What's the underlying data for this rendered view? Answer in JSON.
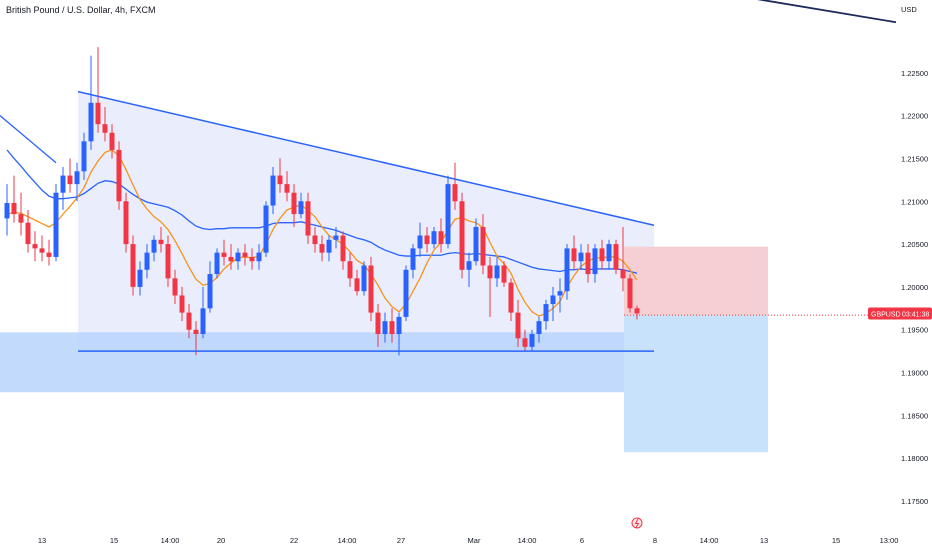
{
  "header": {
    "title": "British Pound / U.S. Dollar, 4h, FXCM",
    "currency": "USD"
  },
  "price_tag": {
    "symbol": "GBPUSD",
    "countdown": "03:41:38",
    "price": 1.1969,
    "color": "#f23645"
  },
  "colors": {
    "up": "#2962ff",
    "down": "#f23645",
    "ma_blue": "#2962ff",
    "ma_orange": "#f7931a",
    "triangle_fill": "#e3e9fb",
    "support_zone": "#b7d3fb",
    "stop_zone": "#f6cfd3",
    "target_zone": "#c9e2fb"
  },
  "chart_data": {
    "type": "candlestick",
    "title": "British Pound / U.S. Dollar, 4h, FXCM",
    "ylabel": "USD",
    "ylim": [
      1.1715,
      1.2335
    ],
    "y_ticks": [
      "1.22500",
      "1.22000",
      "1.21500",
      "1.21000",
      "1.20500",
      "1.20000",
      "1.19500",
      "1.19000",
      "1.18500",
      "1.18000",
      "1.17500"
    ],
    "x_ticks": [
      "13",
      "15",
      "14:00",
      "20",
      "22",
      "14:00",
      "27",
      "Mar",
      "14:00",
      "6",
      "8",
      "14:00",
      "13",
      "15",
      "13:00"
    ],
    "series": [
      {
        "name": "candles",
        "ohlc": [
          [
            1.208,
            1.212,
            1.206,
            1.2098
          ],
          [
            1.2098,
            1.213,
            1.2075,
            1.2085
          ],
          [
            1.2085,
            1.211,
            1.206,
            1.2075
          ],
          [
            1.2075,
            1.209,
            1.204,
            1.205
          ],
          [
            1.205,
            1.2065,
            1.203,
            1.2045
          ],
          [
            1.2045,
            1.206,
            1.203,
            1.204
          ],
          [
            1.204,
            1.2055,
            1.2025,
            1.2035
          ],
          [
            1.2035,
            1.212,
            1.203,
            1.211
          ],
          [
            1.211,
            1.214,
            1.209,
            1.213
          ],
          [
            1.213,
            1.215,
            1.211,
            1.212
          ],
          [
            1.212,
            1.2145,
            1.21,
            1.2135
          ],
          [
            1.2135,
            1.218,
            1.2125,
            1.217
          ],
          [
            1.217,
            1.227,
            1.216,
            1.2215
          ],
          [
            1.2215,
            1.228,
            1.218,
            1.219
          ],
          [
            1.219,
            1.221,
            1.217,
            1.218
          ],
          [
            1.218,
            1.219,
            1.215,
            1.216
          ],
          [
            1.216,
            1.217,
            1.209,
            1.21
          ],
          [
            1.21,
            1.211,
            1.204,
            1.205
          ],
          [
            1.205,
            1.206,
            1.199,
            1.2
          ],
          [
            1.2,
            1.203,
            1.199,
            1.202
          ],
          [
            1.202,
            1.205,
            1.201,
            1.204
          ],
          [
            1.204,
            1.206,
            1.203,
            1.2055
          ],
          [
            1.2055,
            1.207,
            1.204,
            1.205
          ],
          [
            1.205,
            1.206,
            1.2,
            1.201
          ],
          [
            1.201,
            1.202,
            1.198,
            1.199
          ],
          [
            1.199,
            1.2,
            1.196,
            1.197
          ],
          [
            1.197,
            1.198,
            1.194,
            1.195
          ],
          [
            1.195,
            1.196,
            1.192,
            1.1945
          ],
          [
            1.1945,
            1.2,
            1.194,
            1.1975
          ],
          [
            1.1975,
            1.203,
            1.197,
            1.2015
          ],
          [
            1.2015,
            1.2045,
            1.201,
            1.204
          ],
          [
            1.204,
            1.2055,
            1.2025,
            1.2035
          ],
          [
            1.2035,
            1.205,
            1.202,
            1.203
          ],
          [
            1.203,
            1.2045,
            1.202,
            1.204
          ],
          [
            1.204,
            1.205,
            1.2025,
            1.2035
          ],
          [
            1.2035,
            1.2045,
            1.202,
            1.203
          ],
          [
            1.203,
            1.205,
            1.202,
            1.204
          ],
          [
            1.204,
            1.21,
            1.2035,
            1.2095
          ],
          [
            1.2095,
            1.214,
            1.2085,
            1.213
          ],
          [
            1.213,
            1.215,
            1.211,
            1.212
          ],
          [
            1.212,
            1.2135,
            1.21,
            1.211
          ],
          [
            1.211,
            1.212,
            1.207,
            1.2085
          ],
          [
            1.2085,
            1.211,
            1.208,
            1.21
          ],
          [
            1.21,
            1.211,
            1.205,
            1.206
          ],
          [
            1.206,
            1.207,
            1.204,
            1.205
          ],
          [
            1.205,
            1.206,
            1.203,
            1.204
          ],
          [
            1.204,
            1.206,
            1.203,
            1.2055
          ],
          [
            1.2055,
            1.207,
            1.2045,
            1.206
          ],
          [
            1.206,
            1.2065,
            1.202,
            1.203
          ],
          [
            1.203,
            1.204,
            1.2,
            1.201
          ],
          [
            1.201,
            1.202,
            1.199,
            1.1995
          ],
          [
            1.1995,
            1.203,
            1.199,
            1.2025
          ],
          [
            1.2025,
            1.2035,
            1.196,
            1.197
          ],
          [
            1.197,
            1.198,
            1.193,
            1.1945
          ],
          [
            1.1945,
            1.197,
            1.1935,
            1.196
          ],
          [
            1.196,
            1.1975,
            1.1935,
            1.1945
          ],
          [
            1.1945,
            1.197,
            1.192,
            1.1965
          ],
          [
            1.1965,
            1.2025,
            1.196,
            1.202
          ],
          [
            1.202,
            1.205,
            1.201,
            1.2045
          ],
          [
            1.2045,
            1.2075,
            1.2035,
            1.206
          ],
          [
            1.206,
            1.207,
            1.204,
            1.205
          ],
          [
            1.205,
            1.207,
            1.2045,
            1.2065
          ],
          [
            1.2065,
            1.208,
            1.204,
            1.205
          ],
          [
            1.205,
            1.213,
            1.2045,
            1.212
          ],
          [
            1.212,
            1.2145,
            1.209,
            1.21
          ],
          [
            1.21,
            1.211,
            1.201,
            1.202
          ],
          [
            1.202,
            1.204,
            1.2,
            1.203
          ],
          [
            1.203,
            1.208,
            1.2025,
            1.207
          ],
          [
            1.207,
            1.2085,
            1.2015,
            1.2025
          ],
          [
            1.2025,
            1.2035,
            1.1965,
            1.201
          ],
          [
            1.201,
            1.2035,
            1.2,
            1.2025
          ],
          [
            1.2025,
            1.203,
            1.2,
            1.2005
          ],
          [
            1.2005,
            1.201,
            1.196,
            1.197
          ],
          [
            1.197,
            1.1985,
            1.193,
            1.194
          ],
          [
            1.194,
            1.195,
            1.1925,
            1.193
          ],
          [
            1.193,
            1.195,
            1.1925,
            1.1945
          ],
          [
            1.1945,
            1.1965,
            1.1935,
            1.196
          ],
          [
            1.196,
            1.1985,
            1.195,
            1.198
          ],
          [
            1.198,
            1.2,
            1.196,
            1.199
          ],
          [
            1.199,
            1.201,
            1.197,
            1.1995
          ],
          [
            1.1995,
            1.205,
            1.1985,
            1.2045
          ],
          [
            1.2045,
            1.206,
            1.202,
            1.203
          ],
          [
            1.203,
            1.205,
            1.202,
            1.204
          ],
          [
            1.204,
            1.205,
            1.2005,
            1.2015
          ],
          [
            1.2015,
            1.205,
            1.2005,
            1.2045
          ],
          [
            1.2045,
            1.2055,
            1.202,
            1.203
          ],
          [
            1.203,
            1.2055,
            1.202,
            1.205
          ],
          [
            1.205,
            1.2055,
            1.2015,
            1.202
          ],
          [
            1.202,
            1.207,
            1.1995,
            1.201
          ],
          [
            1.201,
            1.2015,
            1.197,
            1.1975
          ],
          [
            1.1975,
            1.1978,
            1.1962,
            1.1969
          ]
        ]
      },
      {
        "name": "ma_blue",
        "values": [
          1.216,
          1.215,
          1.2141,
          1.2131,
          1.2122,
          1.2113,
          1.2106,
          1.2103,
          1.2103,
          1.2104,
          1.2105,
          1.2109,
          1.2115,
          1.2121,
          1.2124,
          1.2123,
          1.212,
          1.2114,
          1.2108,
          1.2103,
          1.2099,
          1.2097,
          1.2095,
          1.2093,
          1.2089,
          1.2084,
          1.2077,
          1.2071,
          1.2068,
          1.2067,
          1.2068,
          1.2068,
          1.2069,
          1.2069,
          1.2069,
          1.2069,
          1.2069,
          1.2071,
          1.2074,
          1.2075,
          1.2075,
          1.2075,
          1.2076,
          1.2074,
          1.2072,
          1.207,
          1.2068,
          1.2066,
          1.2063,
          1.206,
          1.2057,
          1.2055,
          1.2052,
          1.2047,
          1.2043,
          1.204,
          1.2037,
          1.2036,
          1.2036,
          1.2037,
          1.2037,
          1.2037,
          1.2037,
          1.2039,
          1.204,
          1.2039,
          1.2038,
          1.2039,
          1.2038,
          1.2037,
          1.2036,
          1.2035,
          1.2032,
          1.2029,
          1.2026,
          1.2023,
          1.2021,
          1.202,
          1.2019,
          1.2018,
          1.202,
          1.202,
          1.2021,
          1.202,
          1.2021,
          1.2021,
          1.2021,
          1.2021,
          1.202,
          1.2018,
          1.2016
        ]
      },
      {
        "name": "ma_orange",
        "values": [
          1.2085,
          1.2087,
          1.2086,
          1.2082,
          1.2078,
          1.2074,
          1.207,
          1.2075,
          1.2085,
          1.2094,
          1.2104,
          1.2116,
          1.2134,
          1.2147,
          1.2157,
          1.216,
          1.2153,
          1.2137,
          1.2119,
          1.2102,
          1.2091,
          1.2082,
          1.2076,
          1.2067,
          1.2054,
          1.2039,
          1.2023,
          1.2009,
          1.2002,
          1.2004,
          1.2011,
          1.2021,
          1.2028,
          1.2034,
          1.2035,
          1.2034,
          1.2036,
          1.205,
          1.2067,
          1.208,
          1.209,
          1.2093,
          1.2096,
          1.2089,
          1.2082,
          1.207,
          1.206,
          1.2055,
          1.205,
          1.2041,
          1.2031,
          1.2026,
          1.2015,
          1.2002,
          1.1987,
          1.1977,
          1.1971,
          1.198,
          1.1995,
          1.201,
          1.2028,
          1.2043,
          1.2052,
          1.2066,
          1.2079,
          1.2081,
          1.2077,
          1.2075,
          1.2069,
          1.2052,
          1.2036,
          1.2027,
          1.2016,
          1.1997,
          1.1982,
          1.1971,
          1.1966,
          1.1969,
          1.1975,
          1.1983,
          1.2,
          1.2013,
          1.2024,
          1.203,
          1.2034,
          1.2034,
          1.2035,
          1.2035,
          1.203,
          1.202,
          1.2008
        ]
      }
    ],
    "grid": false,
    "legend": "none"
  }
}
